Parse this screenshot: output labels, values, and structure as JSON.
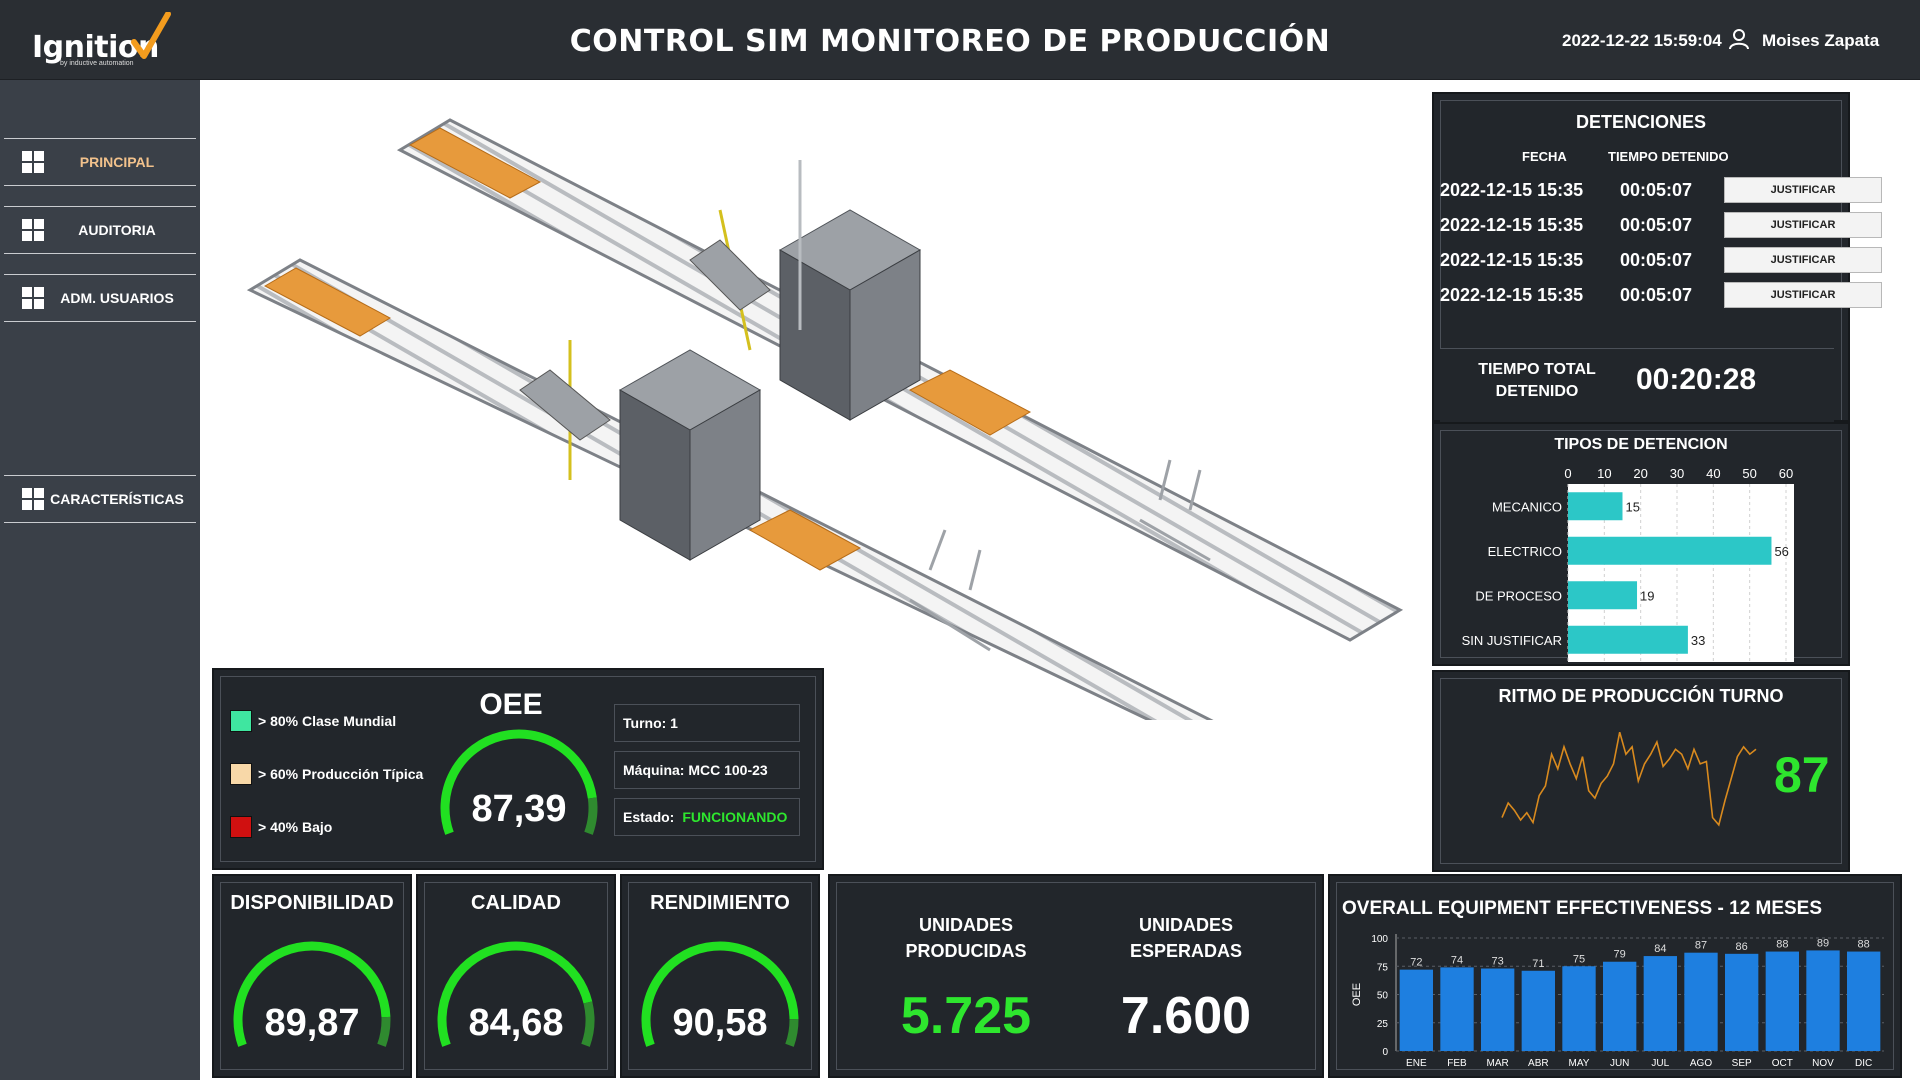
{
  "header": {
    "logo_text": "Ignition",
    "logo_sub": "by inductive automation",
    "title": "CONTROL SIM MONITOREO DE PRODUCCIÓN",
    "datetime": "2022-12-22 15:59:04",
    "user": "Moises Zapata"
  },
  "sidebar": {
    "items": [
      {
        "label": "PRINCIPAL",
        "icon": "grid-icon"
      },
      {
        "label": "AUDITORIA",
        "icon": "grid-icon"
      },
      {
        "label": "ADM. USUARIOS",
        "icon": "grid-icon"
      },
      {
        "label": "CARACTERÍSTICAS",
        "icon": "grid-icon"
      }
    ]
  },
  "detenciones": {
    "title": "DETENCIONES",
    "col_fecha": "FECHA",
    "col_tiempo": "TIEMPO DETENIDO",
    "rows": [
      {
        "fecha": "2022-12-15 15:35",
        "tiempo": "00:05:07",
        "action": "JUSTIFICAR"
      },
      {
        "fecha": "2022-12-15 15:35",
        "tiempo": "00:05:07",
        "action": "JUSTIFICAR"
      },
      {
        "fecha": "2022-12-15 15:35",
        "tiempo": "00:05:07",
        "action": "JUSTIFICAR"
      },
      {
        "fecha": "2022-12-15 15:35",
        "tiempo": "00:05:07",
        "action": "JUSTIFICAR"
      }
    ],
    "total_label": "TIEMPO TOTAL DETENIDO",
    "total_value": "00:20:28"
  },
  "tipos": {
    "title": "TIPOS DE DETENCION"
  },
  "ritmo": {
    "title": "RITMO DE PRODUCCIÓN TURNO",
    "value": "87"
  },
  "oee": {
    "title": "OEE",
    "value": "87,39",
    "value_pct": 87.39,
    "legend": [
      {
        "label": "> 80% Clase Mundial",
        "color": "#3fe6a0"
      },
      {
        "label": "> 60% Producción Típica",
        "color": "#f8d8a8"
      },
      {
        "label": "> 40% Bajo",
        "color": "#d01010"
      }
    ],
    "turno": "Turno: 1",
    "maquina": "Máquina: MCC 100-23",
    "estado_label": "Estado:",
    "estado_value": "FUNCIONANDO"
  },
  "kpis": [
    {
      "title": "DISPONIBILIDAD",
      "value": "89,87",
      "pct": 89.87
    },
    {
      "title": "CALIDAD",
      "value": "84,68",
      "pct": 84.68
    },
    {
      "title": "RENDIMIENTO",
      "value": "90,58",
      "pct": 90.58
    }
  ],
  "units": {
    "producidas_label": "UNIDADES PRODUCIDAS",
    "producidas_value": "5.725",
    "esperadas_label": "UNIDADES ESPERADAS",
    "esperadas_value": "7.600"
  },
  "oee12": {
    "title": "OVERALL EQUIPMENT EFFECTIVENESS - 12 MESES"
  },
  "colors": {
    "gauge_green": "#21e021",
    "gauge_dark_green": "#2f8a2f",
    "bar_cyan": "#2cc7c7",
    "bar_blue": "#1e7fe0",
    "ritmo_line": "#d98a1e",
    "accent_green": "#2ee62e"
  },
  "chart_data": [
    {
      "type": "bar",
      "orientation": "horizontal",
      "title": "TIPOS DE DETENCION",
      "categories": [
        "MECANICO",
        "ELECTRICO",
        "DE PROCESO",
        "SIN JUSTIFICAR"
      ],
      "values": [
        15,
        56,
        19,
        33
      ],
      "xlim": [
        0,
        60
      ],
      "xticks": [
        0,
        10,
        20,
        30,
        40,
        50,
        60
      ],
      "grid": true
    },
    {
      "type": "line",
      "title": "RITMO DE PRODUCCIÓN TURNO",
      "values": [
        40,
        52,
        46,
        38,
        44,
        36,
        58,
        66,
        92,
        80,
        98,
        84,
        72,
        90,
        62,
        56,
        68,
        74,
        84,
        110,
        92,
        98,
        70,
        84,
        92,
        102,
        82,
        88,
        96,
        92,
        80,
        96,
        84,
        86,
        40,
        34,
        54,
        72,
        90,
        98,
        92,
        96
      ]
    },
    {
      "type": "bar",
      "title": "OVERALL EQUIPMENT EFFECTIVENESS - 12 MESES",
      "categories": [
        "ENE",
        "FEB",
        "MAR",
        "ABR",
        "MAY",
        "JUN",
        "JUL",
        "AGO",
        "SEP",
        "OCT",
        "NOV",
        "DIC"
      ],
      "values": [
        72,
        74,
        73,
        71,
        75,
        79,
        84,
        87,
        86,
        88,
        89,
        88
      ],
      "ylabel": "OEE",
      "ylim": [
        0,
        100
      ],
      "yticks": [
        0,
        25,
        50,
        75,
        100
      ],
      "grid": true
    }
  ]
}
